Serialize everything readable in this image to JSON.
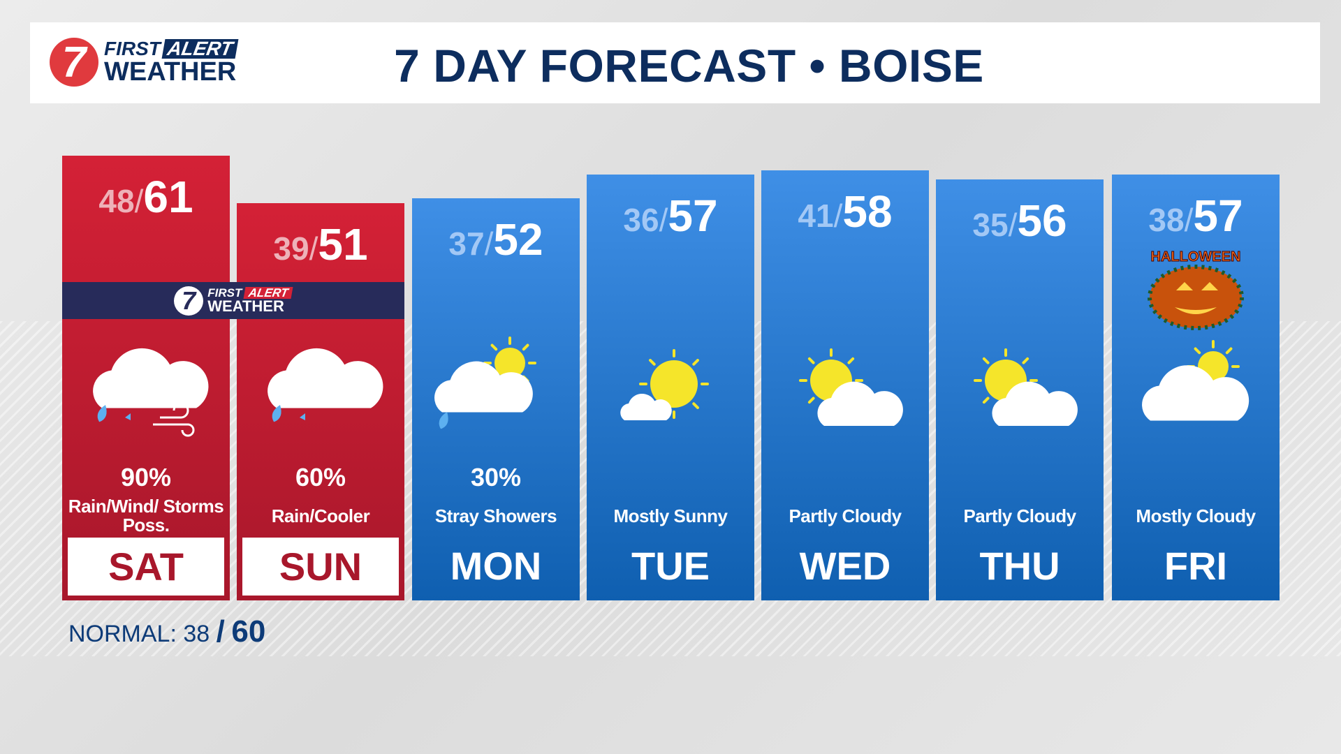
{
  "header": {
    "logo_line1a": "FIRST",
    "logo_line1b": "ALERT",
    "logo_line2": "WEATHER",
    "logo_number": "7",
    "title": "7 DAY FORECAST • BOISE"
  },
  "banner": {
    "number": "7",
    "line1a": "FIRST",
    "line1b": "ALERT",
    "line2": "WEATHER"
  },
  "colors": {
    "alert_red": "#d42136",
    "forecast_blue": "#1f74cc",
    "navy": "#0d2d5e"
  },
  "days": [
    {
      "day": "SAT",
      "low": "48",
      "high": "61",
      "pop": "90%",
      "condition": "Rain/Wind/ Storms Poss.",
      "icon": "rain-wind-cloud-icon",
      "alert": true
    },
    {
      "day": "SUN",
      "low": "39",
      "high": "51",
      "pop": "60%",
      "condition": "Rain/Cooler",
      "icon": "rain-cloud-icon",
      "alert": true
    },
    {
      "day": "MON",
      "low": "37",
      "high": "52",
      "pop": "30%",
      "condition": "Stray Showers",
      "icon": "sun-cloud-shower-icon",
      "alert": false
    },
    {
      "day": "TUE",
      "low": "36",
      "high": "57",
      "pop": "",
      "condition": "Mostly Sunny",
      "icon": "mostly-sunny-icon",
      "alert": false
    },
    {
      "day": "WED",
      "low": "41",
      "high": "58",
      "pop": "",
      "condition": "Partly Cloudy",
      "icon": "partly-cloudy-icon",
      "alert": false
    },
    {
      "day": "THU",
      "low": "35",
      "high": "56",
      "pop": "",
      "condition": "Partly Cloudy",
      "icon": "partly-cloudy-icon",
      "alert": false
    },
    {
      "day": "FRI",
      "low": "38",
      "high": "57",
      "pop": "",
      "condition": "Mostly Cloudy",
      "icon": "mostly-cloudy-icon",
      "alert": false,
      "badge": "HALLOWEEN"
    }
  ],
  "normal": {
    "label": "NORMAL:",
    "low": "38",
    "sep": "/",
    "high": "60"
  }
}
